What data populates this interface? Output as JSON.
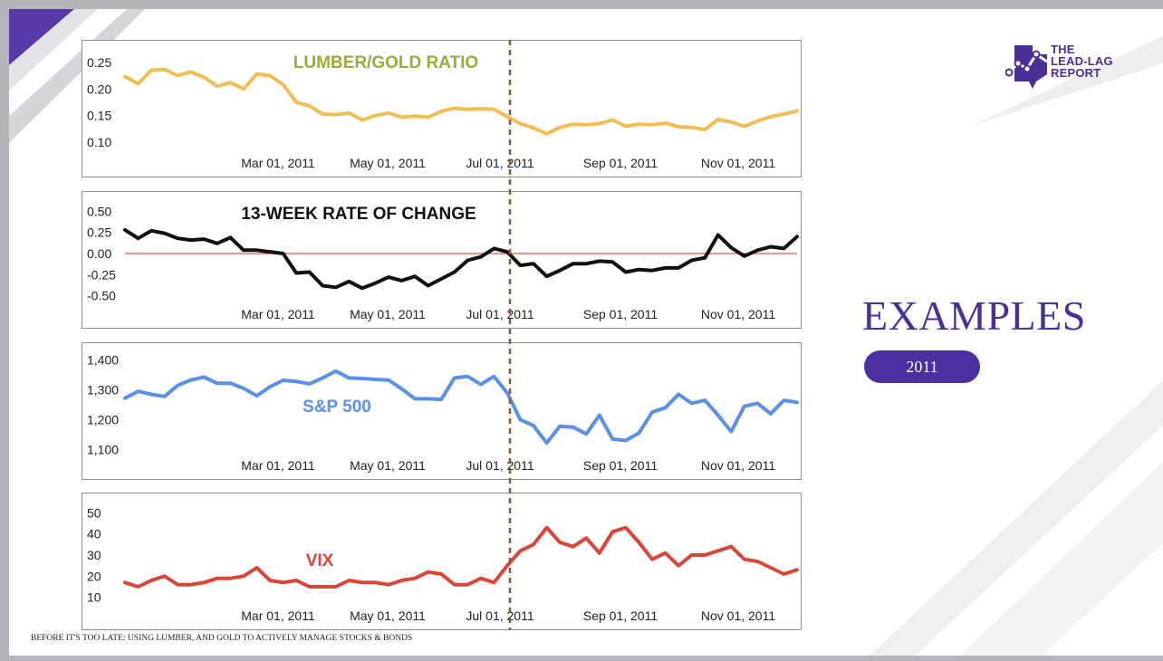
{
  "slide": {
    "section_title": "EXAMPLES",
    "year_badge": "2011",
    "footer_text": "BEFORE IT'S TOO LATE: USING LUMBER, AND GOLD TO ACTIVELY MANAGE STOCKS & BONDS",
    "logo_lines": [
      "THE",
      "LEAD-LAG",
      "REPORT"
    ],
    "logo_icon": "chart-line-logo-icon",
    "colors": {
      "brand_purple": "#4b2f96",
      "divider": "#8b5a2b"
    }
  },
  "chart_data": [
    {
      "type": "line",
      "title": "LUMBER/GOLD RATIO",
      "title_color": "#9cab3a",
      "x_tick_labels": [
        "Mar 01, 2011",
        "May 01, 2011",
        "Jul 01, 2011",
        "Sep 01, 2011",
        "Nov 01, 2011"
      ],
      "y_tick_labels": [
        "0.25",
        "0.20",
        "0.15",
        "0.10"
      ],
      "y_ticks": [
        0.25,
        0.2,
        0.15,
        0.1
      ],
      "ylim": [
        0.08,
        0.27
      ],
      "grid": false,
      "series": [
        {
          "color": "#efbe55",
          "values": [
            0.223,
            0.21,
            0.235,
            0.237,
            0.225,
            0.232,
            0.222,
            0.205,
            0.212,
            0.2,
            0.228,
            0.225,
            0.208,
            0.175,
            0.168,
            0.153,
            0.152,
            0.155,
            0.142,
            0.15,
            0.155,
            0.147,
            0.149,
            0.147,
            0.158,
            0.164,
            0.162,
            0.163,
            0.162,
            0.148,
            0.135,
            0.127,
            0.116,
            0.128,
            0.134,
            0.133,
            0.135,
            0.142,
            0.13,
            0.134,
            0.133,
            0.136,
            0.129,
            0.128,
            0.124,
            0.143,
            0.138,
            0.13,
            0.14,
            0.148,
            0.153,
            0.159
          ]
        }
      ]
    },
    {
      "type": "line",
      "title": "13-WEEK RATE OF CHANGE",
      "title_color": "#111111",
      "x_tick_labels": [
        "Mar 01, 2011",
        "May 01, 2011",
        "Jul 01, 2011",
        "Sep 01, 2011",
        "Nov 01, 2011"
      ],
      "y_tick_labels": [
        "0.50",
        "0.25",
        "0.00",
        "-0.25",
        "-0.50"
      ],
      "y_ticks": [
        0.5,
        0.25,
        0.0,
        -0.25,
        -0.5
      ],
      "ylim": [
        -0.6,
        0.6
      ],
      "zero_line": true,
      "zero_line_color": "#d9534f",
      "grid": false,
      "series": [
        {
          "color": "#111111",
          "values": [
            0.28,
            0.18,
            0.27,
            0.24,
            0.18,
            0.16,
            0.17,
            0.12,
            0.19,
            0.04,
            0.04,
            0.02,
            0.0,
            -0.23,
            -0.22,
            -0.38,
            -0.4,
            -0.33,
            -0.41,
            -0.35,
            -0.28,
            -0.32,
            -0.27,
            -0.38,
            -0.3,
            -0.22,
            -0.08,
            -0.04,
            0.06,
            0.02,
            -0.14,
            -0.12,
            -0.27,
            -0.2,
            -0.12,
            -0.12,
            -0.09,
            -0.1,
            -0.22,
            -0.19,
            -0.2,
            -0.17,
            -0.17,
            -0.08,
            -0.05,
            0.22,
            0.07,
            -0.03,
            0.04,
            0.08,
            0.06,
            0.2
          ]
        }
      ]
    },
    {
      "type": "line",
      "title": "S&P 500",
      "title_color": "#5b8fe8",
      "x_tick_labels": [
        "Mar 01, 2011",
        "May 01, 2011",
        "Jul 01, 2011",
        "Sep 01, 2011",
        "Nov 01, 2011"
      ],
      "y_tick_labels": [
        "1,400",
        "1,300",
        "1,200",
        "1,100"
      ],
      "y_ticks": [
        1400,
        1300,
        1200,
        1100
      ],
      "ylim": [
        1080,
        1420
      ],
      "grid": false,
      "series": [
        {
          "color": "#5b8fe8",
          "values": [
            1272,
            1295,
            1285,
            1278,
            1315,
            1333,
            1343,
            1322,
            1322,
            1305,
            1280,
            1310,
            1332,
            1328,
            1320,
            1340,
            1363,
            1340,
            1338,
            1335,
            1333,
            1303,
            1270,
            1270,
            1268,
            1340,
            1345,
            1318,
            1345,
            1290,
            1200,
            1180,
            1122,
            1178,
            1175,
            1152,
            1215,
            1135,
            1130,
            1155,
            1225,
            1240,
            1285,
            1255,
            1265,
            1215,
            1160,
            1245,
            1255,
            1220,
            1265,
            1258
          ]
        }
      ]
    },
    {
      "type": "line",
      "title": "VIX",
      "title_color": "#d9473b",
      "x_tick_labels": [
        "Mar 01, 2011",
        "May 01, 2011",
        "Jul 01, 2011",
        "Sep 01, 2011",
        "Nov 01, 2011"
      ],
      "y_tick_labels": [
        "50",
        "40",
        "30",
        "20",
        "10"
      ],
      "y_ticks": [
        50,
        40,
        30,
        20,
        10
      ],
      "ylim": [
        6,
        54
      ],
      "grid": false,
      "series": [
        {
          "color": "#d9473b",
          "values": [
            17,
            15,
            18,
            20,
            16,
            16,
            17,
            19,
            19,
            20,
            24,
            18,
            17,
            18,
            15,
            15,
            15,
            18,
            17,
            17,
            16,
            18,
            19,
            22,
            21,
            16,
            16,
            19,
            17,
            25,
            32,
            35,
            43,
            36,
            34,
            38,
            31,
            41,
            43,
            36,
            28,
            31,
            25,
            30,
            30,
            32,
            34,
            28,
            27,
            24,
            21,
            23
          ]
        }
      ]
    }
  ]
}
